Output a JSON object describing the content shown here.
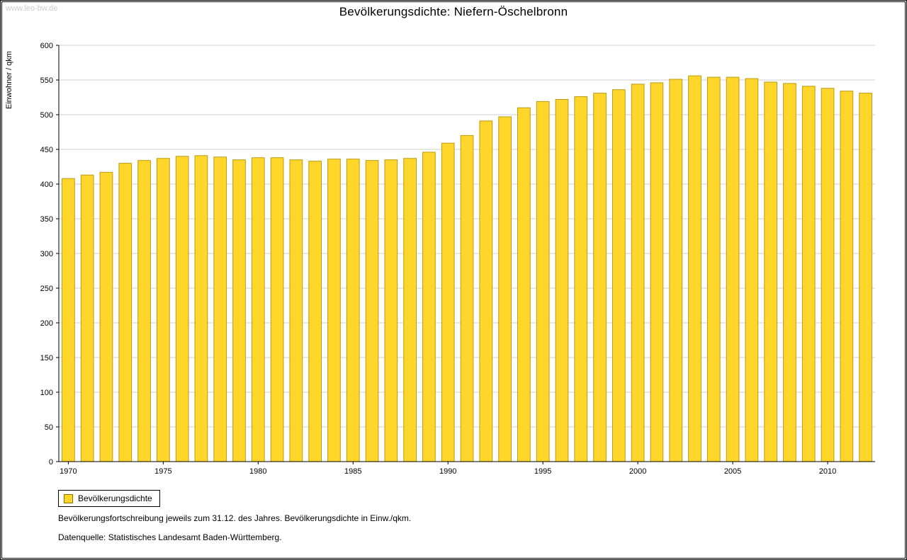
{
  "watermark": "www.leo-bw.de",
  "title": "Bevölkerungsdichte: Niefern-Öschelbronn",
  "legend": {
    "label": "Bevölkerungsdichte"
  },
  "footnotes": [
    "Bevölkerungsfortschreibung jeweils zum 31.12. des Jahres. Bevölkerungsdichte in Einw./qkm.",
    "Datenquelle: Statistisches Landesamt Baden-Württemberg."
  ],
  "chart_data": {
    "type": "bar",
    "title": "Bevölkerungsdichte: Niefern-Öschelbronn",
    "xlabel": "",
    "ylabel": "Einwohner / qkm",
    "ylim": [
      0,
      600
    ],
    "ytick_interval": 50,
    "xtick_labels": [
      1970,
      1975,
      1980,
      1985,
      1990,
      1995,
      2000,
      2005,
      2010
    ],
    "grid": true,
    "legend_position": "bottom-left",
    "bar_color": "#FFD629",
    "bar_border": "#B99B12",
    "grid_color": "#cfcfcf",
    "axis_color": "#000000",
    "categories": [
      1970,
      1971,
      1972,
      1973,
      1974,
      1975,
      1976,
      1977,
      1978,
      1979,
      1980,
      1981,
      1982,
      1983,
      1984,
      1985,
      1986,
      1987,
      1988,
      1989,
      1990,
      1991,
      1992,
      1993,
      1994,
      1995,
      1996,
      1997,
      1998,
      1999,
      2000,
      2001,
      2002,
      2003,
      2004,
      2005,
      2006,
      2007,
      2008,
      2009,
      2010,
      2011,
      2012
    ],
    "values": [
      408,
      413,
      417,
      430,
      434,
      437,
      440,
      441,
      439,
      435,
      438,
      438,
      435,
      433,
      436,
      436,
      434,
      435,
      437,
      446,
      459,
      470,
      491,
      497,
      510,
      519,
      522,
      526,
      531,
      536,
      544,
      546,
      551,
      556,
      554,
      554,
      552,
      547,
      545,
      541,
      538,
      534,
      531
    ]
  }
}
